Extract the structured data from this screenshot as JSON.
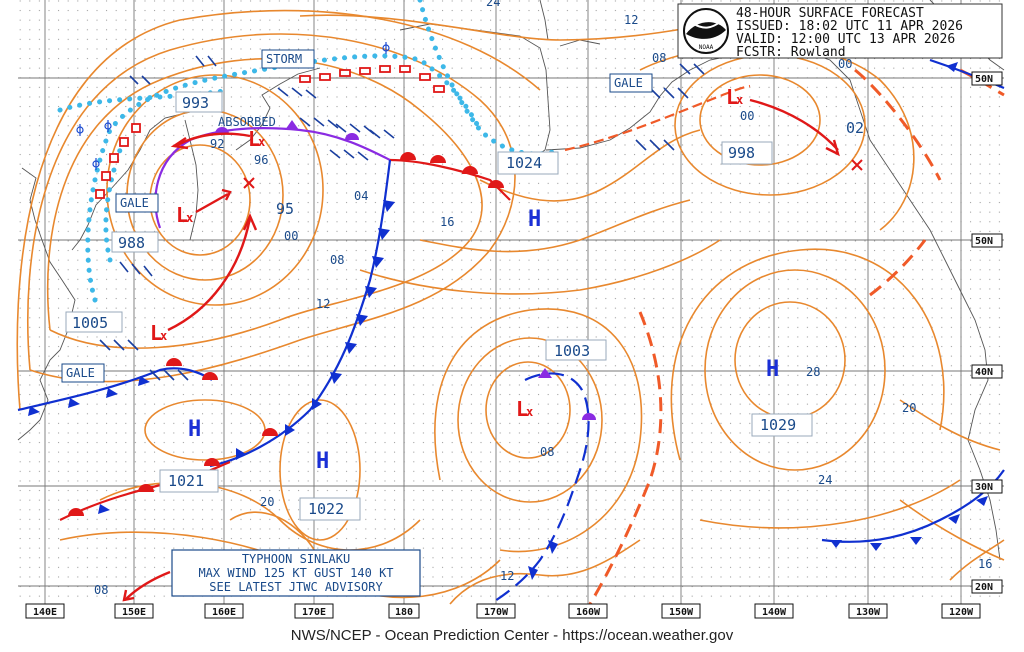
{
  "header": {
    "title": "48-HOUR SURFACE FORECAST",
    "issued": "ISSUED: 18:02 UTC 11 APR 2026",
    "valid": "VALID:  12:00 UTC 13 APR 2026",
    "forecaster": "FCSTR:  Rowland",
    "logo_alt": "NOAA"
  },
  "footer": {
    "credit": "NWS/NCEP - Ocean Prediction Center - https://ocean.weather.gov"
  },
  "longitude_labels": [
    "140E",
    "150E",
    "160E",
    "170E",
    "180",
    "170W",
    "160W",
    "150W",
    "140W",
    "130W",
    "120W"
  ],
  "latitude_labels": [
    "50N",
    "40N",
    "30N",
    "20N"
  ],
  "pressure_centers": [
    {
      "type": "L",
      "value": "992"
    },
    {
      "type": "L",
      "value": "993"
    },
    {
      "type": "L",
      "value": "988"
    },
    {
      "type": "L",
      "value": "995"
    },
    {
      "type": "L",
      "value": "1005"
    },
    {
      "type": "L",
      "value": "1003"
    },
    {
      "type": "L",
      "value": "998"
    },
    {
      "type": "H",
      "value": "1024"
    },
    {
      "type": "H",
      "value": "1021"
    },
    {
      "type": "H",
      "value": "1022"
    },
    {
      "type": "H",
      "value": "1029"
    }
  ],
  "center_labels": {
    "c993": "993",
    "c92": "92",
    "c96": "96",
    "c95": "95",
    "c988": "988",
    "c1005": "1005",
    "c1003": "1003",
    "c998": "998",
    "c02": "02",
    "c1024": "1024",
    "c1021": "1021",
    "c1022": "1022",
    "c1029": "1029",
    "letter_H": "H",
    "letter_L": "L"
  },
  "isobar_labels": {
    "i24": "24",
    "i12a": "12",
    "i08a": "08",
    "i00a": "00",
    "i00b": "00",
    "i04": "04",
    "i16a": "16",
    "i00c": "00",
    "i08b": "08",
    "i12b": "12",
    "i08c": "08",
    "i28": "28",
    "i20a": "20",
    "i24b": "24",
    "i20b": "20",
    "i16b": "16",
    "i12c": "12",
    "i08d": "08"
  },
  "warning_labels": {
    "storm": "STORM",
    "gale1": "GALE",
    "gale2": "GALE",
    "gale3": "GALE",
    "absorbed": "ABSORBED"
  },
  "typhoon_box": {
    "line1": "TYPHOON SINLAKU",
    "line2": "MAX WIND 125 KT GUST 140 KT",
    "line3": "SEE LATEST JTWC ADVISORY"
  },
  "colors": {
    "isobar": "#e8882e",
    "cold_front": "#1030d0",
    "warm_front": "#e01818",
    "occluded": "#8a2be2",
    "trough": "#f05a28",
    "ice_dots": "#3db8e8",
    "high": "#1a2fd6",
    "low": "#e01818",
    "label_text": "#1a4a8a",
    "grid": "#777777",
    "coast": "#555555"
  }
}
